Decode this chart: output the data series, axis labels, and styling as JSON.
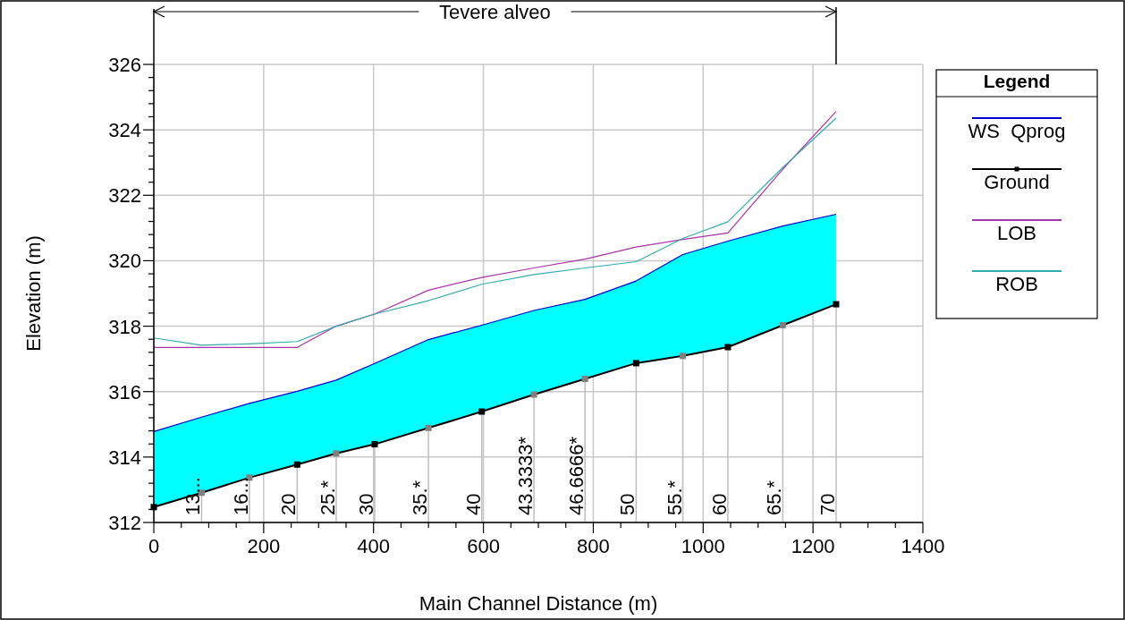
{
  "chart_data": {
    "type": "line",
    "xlabel": "Main Channel Distance (m)",
    "ylabel": "Elevation (m)",
    "legend_title": "Legend",
    "legend": "right",
    "grid": true,
    "xlim": [
      0,
      1400
    ],
    "xticks": [
      0,
      {
        "value": 50,
        "label": null
      },
      {
        "value": 100,
        "label": null
      },
      {
        "value": 150,
        "label": null
      },
      200,
      {
        "value": 250,
        "label": null
      },
      {
        "value": 300,
        "label": null
      },
      {
        "value": 350,
        "label": null
      },
      400,
      {
        "value": 450,
        "label": null
      },
      {
        "value": 500,
        "label": null
      },
      {
        "value": 550,
        "label": null
      },
      600,
      {
        "value": 650,
        "label": null
      },
      {
        "value": 700,
        "label": null
      },
      {
        "value": 750,
        "label": null
      },
      800,
      {
        "value": 850,
        "label": null
      },
      {
        "value": 900,
        "label": null
      },
      {
        "value": 950,
        "label": null
      },
      1000,
      {
        "value": 1050,
        "label": null
      },
      {
        "value": 1100,
        "label": null
      },
      {
        "value": 1150,
        "label": null
      },
      1200,
      {
        "value": 1250,
        "label": null
      },
      {
        "value": 1300,
        "label": null
      },
      {
        "value": 1350,
        "label": null
      },
      1400
    ],
    "ylim": [
      312,
      326
    ],
    "yticks": [
      312,
      {
        "value": 312.4,
        "label": null
      },
      {
        "value": 312.8,
        "label": null
      },
      {
        "value": 313.2,
        "label": null
      },
      {
        "value": 313.6,
        "label": null
      },
      314,
      {
        "value": 314.4,
        "label": null
      },
      {
        "value": 314.8,
        "label": null
      },
      {
        "value": 315.2,
        "label": null
      },
      {
        "value": 315.6,
        "label": null
      },
      316,
      {
        "value": 316.4,
        "label": null
      },
      {
        "value": 316.8,
        "label": null
      },
      {
        "value": 317.2,
        "label": null
      },
      {
        "value": 317.6,
        "label": null
      },
      318,
      {
        "value": 318.4,
        "label": null
      },
      {
        "value": 318.8,
        "label": null
      },
      {
        "value": 319.2,
        "label": null
      },
      {
        "value": 319.6,
        "label": null
      },
      320,
      {
        "value": 320.4,
        "label": null
      },
      {
        "value": 320.8,
        "label": null
      },
      {
        "value": 321.2,
        "label": null
      },
      {
        "value": 321.6,
        "label": null
      },
      322,
      {
        "value": 322.4,
        "label": null
      },
      {
        "value": 322.8,
        "label": null
      },
      {
        "value": 323.2,
        "label": null
      },
      {
        "value": 323.6,
        "label": null
      },
      324,
      {
        "value": 324.4,
        "label": null
      },
      {
        "value": 324.8,
        "label": null
      },
      {
        "value": 325.2,
        "label": null
      },
      {
        "value": 325.6,
        "label": null
      },
      326
    ],
    "x": [
      0,
      87,
      174,
      261,
      332,
      402,
      500,
      597,
      692,
      785,
      878,
      963,
      1045,
      1145,
      1242
    ],
    "series": [
      {
        "name": "WS  Qprog",
        "type": "area",
        "color": "#0000cc",
        "values": [
          314.78,
          315.22,
          315.64,
          316.01,
          316.35,
          316.86,
          317.59,
          318.03,
          318.48,
          318.82,
          319.38,
          320.19,
          320.6,
          321.06,
          321.42
        ]
      },
      {
        "name": "Ground",
        "color": "#000000",
        "marker": "square",
        "colors": [
          "#000000",
          "#808080",
          "#808080",
          "#000000",
          "#808080",
          "#000000",
          "#808080",
          "#000000",
          "#808080",
          "#808080",
          "#000000",
          "#808080",
          "#000000",
          "#808080",
          "#000000"
        ],
        "values": [
          312.47,
          312.91,
          313.37,
          313.77,
          314.11,
          314.39,
          314.89,
          315.39,
          315.91,
          316.39,
          316.87,
          317.09,
          317.36,
          318.03,
          318.67
        ]
      },
      {
        "name": "LOB",
        "color": "#aa33aa",
        "values": [
          317.35,
          317.35,
          317.35,
          317.35,
          318.0,
          318.37,
          319.1,
          319.49,
          319.78,
          320.05,
          320.42,
          320.65,
          320.85,
          322.8,
          324.56
        ]
      },
      {
        "name": "ROB",
        "color": "#33aaaa",
        "values": [
          317.64,
          317.42,
          317.46,
          317.53,
          318.0,
          318.37,
          318.78,
          319.28,
          319.58,
          319.78,
          319.97,
          320.68,
          321.19,
          322.85,
          324.36
        ]
      }
    ],
    "annotations": [
      "Tevere alveo",
      {
        "text": "13...",
        "x": 87,
        "y": 312.91
      },
      {
        "text": "16...",
        "x": 174,
        "y": 313.37
      },
      {
        "text": "20",
        "x": 261,
        "y": 313.77
      },
      {
        "text": "25.*",
        "x": 332,
        "y": 314.11
      },
      {
        "text": "30",
        "x": 402,
        "y": 314.39
      },
      {
        "text": "35.*",
        "x": 500,
        "y": 314.89
      },
      {
        "text": "40",
        "x": 597,
        "y": 315.39
      },
      {
        "text": "43.3333*",
        "x": 692,
        "y": 315.91
      },
      {
        "text": "46.6666*",
        "x": 785,
        "y": 316.39
      },
      {
        "text": "50",
        "x": 878,
        "y": 316.87
      },
      {
        "text": "55.*",
        "x": 963,
        "y": 317.09
      },
      {
        "text": "60",
        "x": 1045,
        "y": 317.36
      },
      {
        "text": "65.*",
        "x": 1145,
        "y": 318.03
      },
      {
        "text": "70",
        "x": 1242,
        "y": 318.67
      }
    ]
  }
}
